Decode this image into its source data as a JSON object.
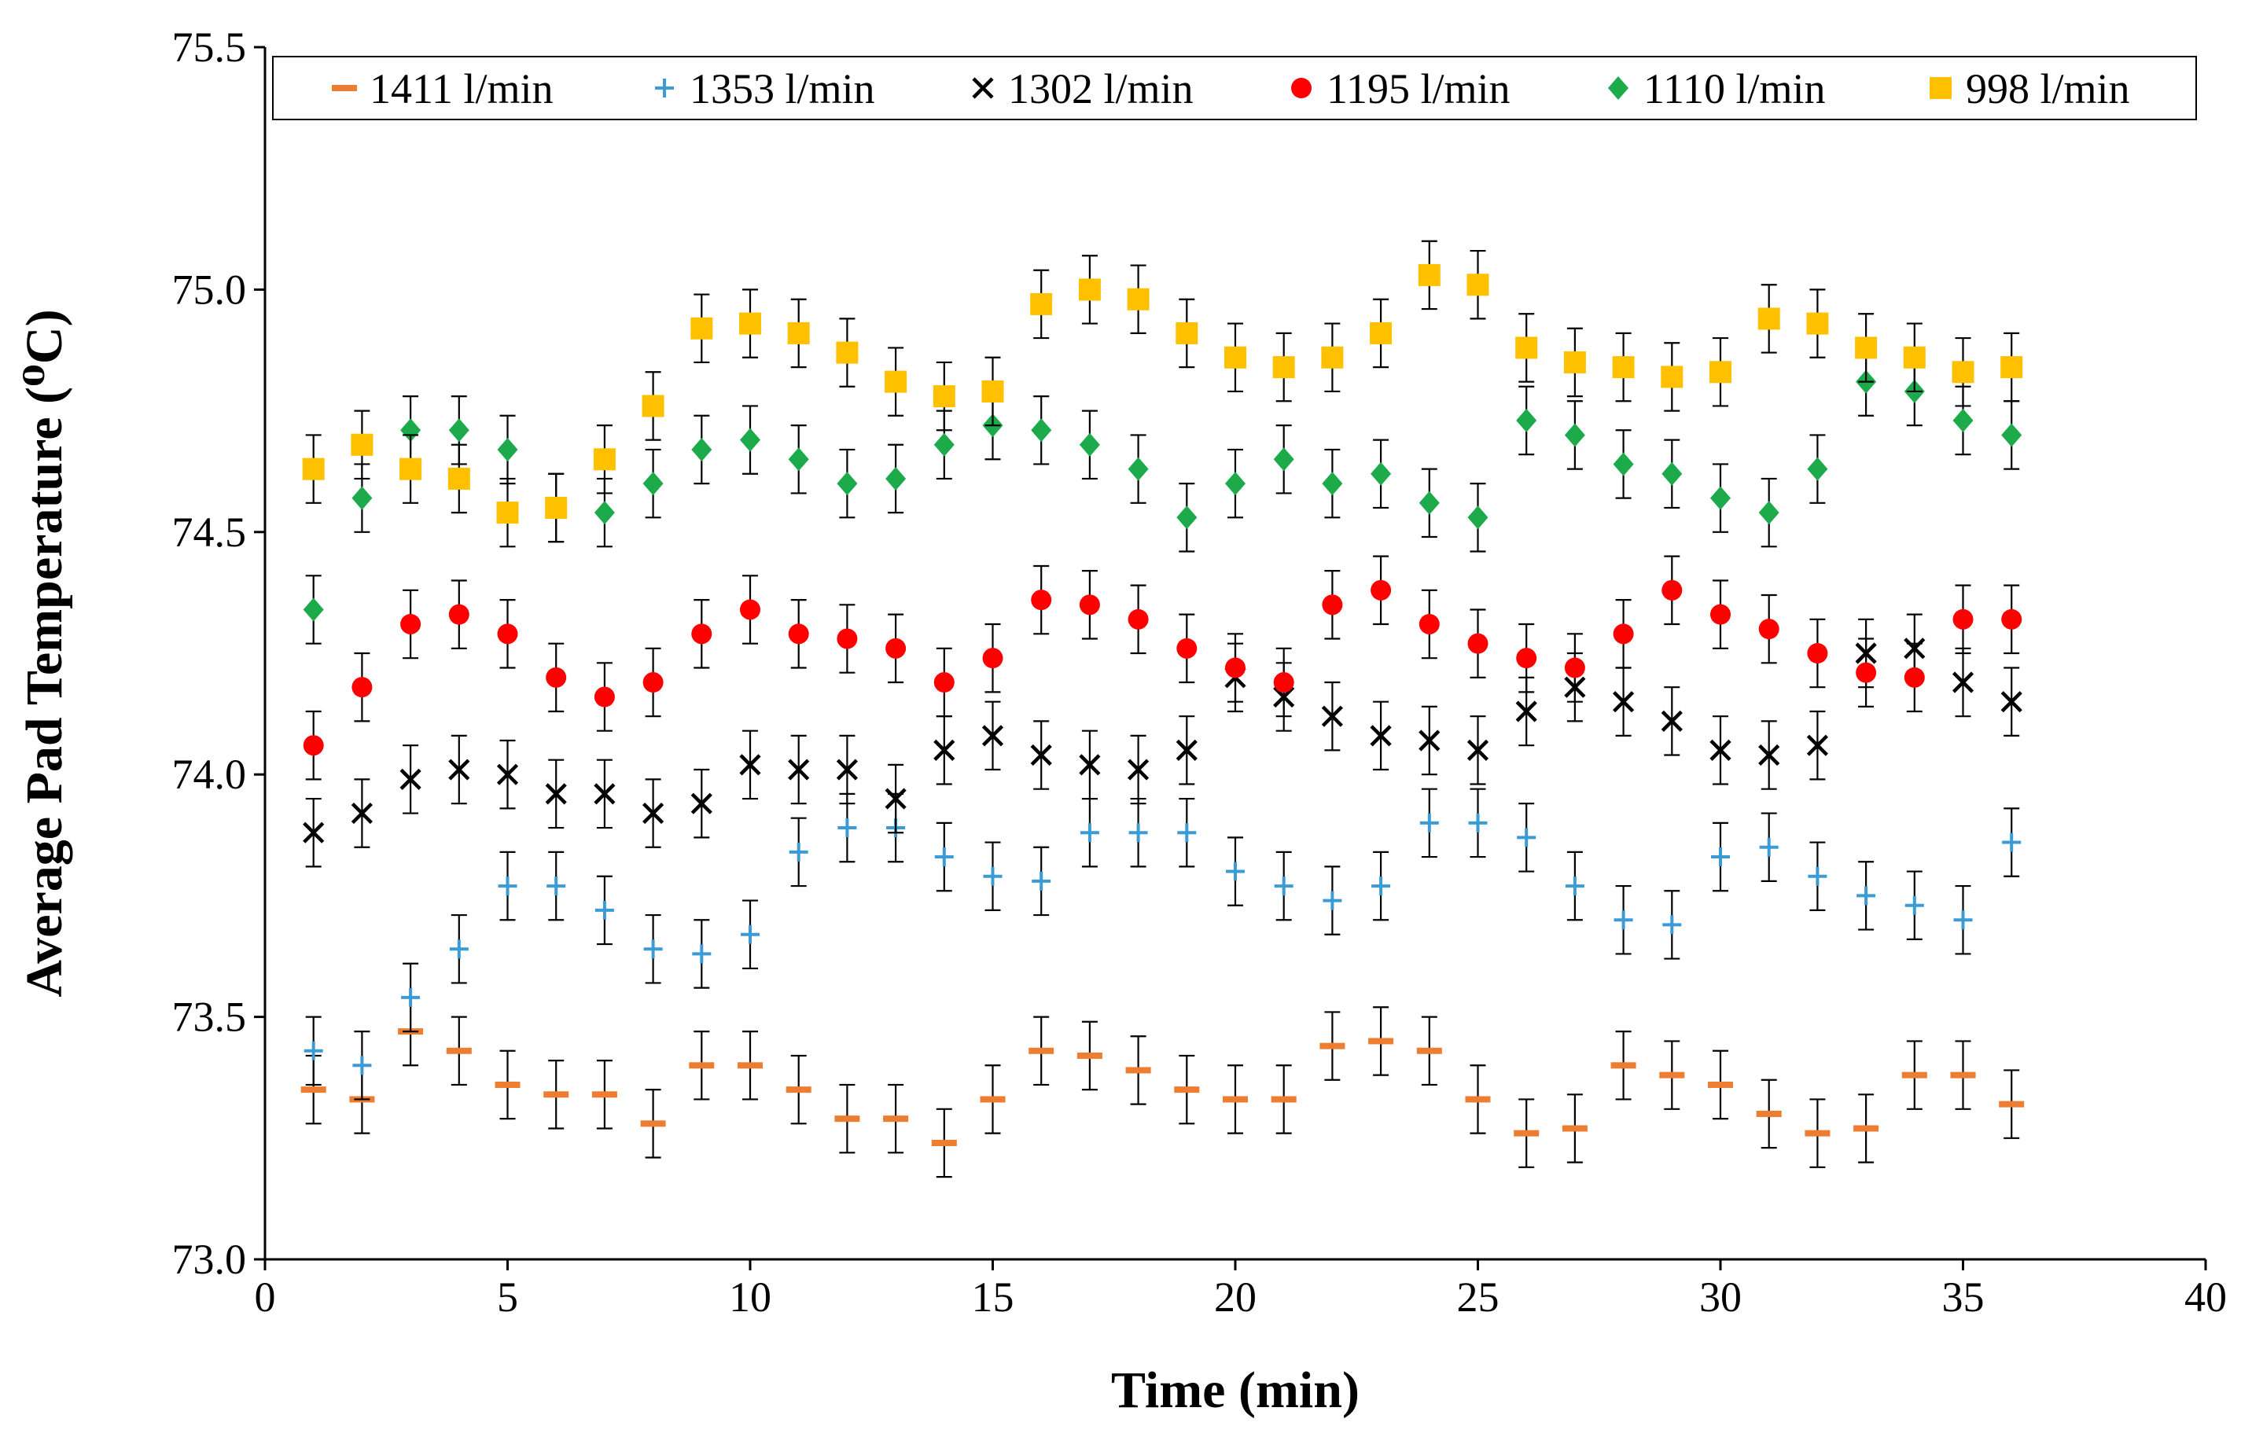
{
  "chart_data": {
    "type": "scatter",
    "title": "",
    "xlabel": "Time (min)",
    "ylabel": "Average Pad Temperature (⁰C)",
    "xlim": [
      0,
      40
    ],
    "ylim": [
      73.0,
      75.5
    ],
    "x_ticks": [
      "0",
      "5",
      "10",
      "15",
      "20",
      "25",
      "30",
      "35",
      "40"
    ],
    "y_ticks": [
      "73.0",
      "73.5",
      "74.0",
      "74.5",
      "75.0",
      "75.5"
    ],
    "error_bar": 0.07,
    "legend_position": "top",
    "x": [
      1,
      2,
      3,
      4,
      5,
      6,
      7,
      8,
      9,
      10,
      11,
      12,
      13,
      14,
      15,
      16,
      17,
      18,
      19,
      20,
      21,
      22,
      23,
      24,
      25,
      26,
      27,
      28,
      29,
      30,
      31,
      32,
      33,
      34,
      35,
      36
    ],
    "series": [
      {
        "name": "1411 l/min",
        "marker": "dash",
        "color": "#ED7D31",
        "values": [
          73.35,
          73.33,
          73.47,
          73.43,
          73.36,
          73.34,
          73.34,
          73.28,
          73.4,
          73.4,
          73.35,
          73.29,
          73.29,
          73.24,
          73.33,
          73.43,
          73.42,
          73.39,
          73.35,
          73.33,
          73.33,
          73.44,
          73.45,
          73.43,
          73.33,
          73.26,
          73.27,
          73.4,
          73.38,
          73.36,
          73.3,
          73.26,
          73.27,
          73.38,
          73.38,
          73.32
        ]
      },
      {
        "name": "1353 l/min",
        "marker": "plus",
        "color": "#3A9BD5",
        "values": [
          73.43,
          73.4,
          73.54,
          73.64,
          73.77,
          73.77,
          73.72,
          73.64,
          73.63,
          73.67,
          73.84,
          73.89,
          73.89,
          73.83,
          73.79,
          73.78,
          73.88,
          73.88,
          73.88,
          73.8,
          73.77,
          73.74,
          73.77,
          73.9,
          73.9,
          73.87,
          73.77,
          73.7,
          73.69,
          73.83,
          73.85,
          73.79,
          73.75,
          73.73,
          73.7,
          73.86
        ]
      },
      {
        "name": "1302 l/min",
        "marker": "x",
        "color": "#000000",
        "values": [
          73.88,
          73.92,
          73.99,
          74.01,
          74.0,
          73.96,
          73.96,
          73.92,
          73.94,
          74.02,
          74.01,
          74.01,
          73.95,
          74.05,
          74.08,
          74.04,
          74.02,
          74.01,
          74.05,
          74.2,
          74.16,
          74.12,
          74.08,
          74.07,
          74.05,
          74.13,
          74.18,
          74.15,
          74.11,
          74.05,
          74.04,
          74.06,
          74.25,
          74.26,
          74.19,
          74.15
        ]
      },
      {
        "name": "1195 l/min",
        "marker": "circle",
        "color": "#FF0000",
        "values": [
          74.06,
          74.18,
          74.31,
          74.33,
          74.29,
          74.2,
          74.16,
          74.19,
          74.29,
          74.34,
          74.29,
          74.28,
          74.26,
          74.19,
          74.24,
          74.36,
          74.35,
          74.32,
          74.26,
          74.22,
          74.19,
          74.35,
          74.38,
          74.31,
          74.27,
          74.24,
          74.22,
          74.29,
          74.38,
          74.33,
          74.3,
          74.25,
          74.21,
          74.2,
          74.32,
          74.32
        ]
      },
      {
        "name": "1110 l/min",
        "marker": "diamond",
        "color": "#1CAA4B",
        "values": [
          74.34,
          74.57,
          74.71,
          74.71,
          74.67,
          74.55,
          74.54,
          74.6,
          74.67,
          74.69,
          74.65,
          74.6,
          74.61,
          74.68,
          74.72,
          74.71,
          74.68,
          74.63,
          74.53,
          74.6,
          74.65,
          74.6,
          74.62,
          74.56,
          74.53,
          74.73,
          74.7,
          74.64,
          74.62,
          74.57,
          74.54,
          74.63,
          74.81,
          74.79,
          74.73,
          74.7
        ]
      },
      {
        "name": "998 l/min",
        "marker": "square",
        "color": "#FFC000",
        "values": [
          74.63,
          74.68,
          74.63,
          74.61,
          74.54,
          74.55,
          74.65,
          74.76,
          74.92,
          74.93,
          74.91,
          74.87,
          74.81,
          74.78,
          74.79,
          74.97,
          75.0,
          74.98,
          74.91,
          74.86,
          74.84,
          74.86,
          74.91,
          75.03,
          75.01,
          74.88,
          74.85,
          74.84,
          74.82,
          74.83,
          74.94,
          74.93,
          74.88,
          74.86,
          74.83,
          74.84
        ]
      }
    ]
  }
}
